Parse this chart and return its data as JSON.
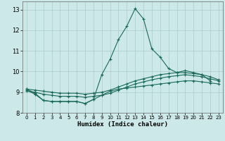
{
  "title": "",
  "xlabel": "Humidex (Indice chaleur)",
  "ylabel": "",
  "xlim": [
    -0.5,
    23.5
  ],
  "ylim": [
    8.0,
    13.4
  ],
  "yticks": [
    8,
    9,
    10,
    11,
    12,
    13
  ],
  "xticks": [
    0,
    1,
    2,
    3,
    4,
    5,
    6,
    7,
    8,
    9,
    10,
    11,
    12,
    13,
    14,
    15,
    16,
    17,
    18,
    19,
    20,
    21,
    22,
    23
  ],
  "bg_color": "#cce8e8",
  "grid_color": "#aacccc",
  "line_color": "#1a6a5a",
  "lines": [
    {
      "x": [
        0,
        1,
        2,
        3,
        4,
        5,
        6,
        7,
        8,
        9,
        10,
        11,
        12,
        13,
        14,
        15,
        16,
        17,
        18,
        19,
        20,
        21,
        22,
        23
      ],
      "y": [
        9.15,
        8.95,
        8.6,
        8.55,
        8.55,
        8.55,
        8.55,
        8.45,
        8.65,
        9.85,
        10.6,
        11.55,
        12.2,
        13.05,
        12.55,
        11.1,
        10.7,
        10.15,
        9.95,
        9.95,
        9.9,
        9.85,
        9.55,
        null
      ]
    },
    {
      "x": [
        0,
        1,
        2,
        3,
        4,
        5,
        6,
        7,
        8,
        9,
        10,
        11,
        12,
        13,
        14,
        15,
        16,
        17,
        18,
        19,
        20,
        21,
        22,
        23
      ],
      "y": [
        9.15,
        9.1,
        9.05,
        9.0,
        8.95,
        8.95,
        8.95,
        8.9,
        8.95,
        9.0,
        9.1,
        9.25,
        9.4,
        9.55,
        9.65,
        9.75,
        9.85,
        9.9,
        9.95,
        10.05,
        9.95,
        9.85,
        9.75,
        9.6
      ]
    },
    {
      "x": [
        0,
        1,
        2,
        3,
        4,
        5,
        6,
        7,
        8,
        9,
        10,
        11,
        12,
        13,
        14,
        15,
        16,
        17,
        18,
        19,
        20,
        21,
        22,
        23
      ],
      "y": [
        9.05,
        9.0,
        8.9,
        8.85,
        8.8,
        8.8,
        8.8,
        8.75,
        8.8,
        8.85,
        8.95,
        9.1,
        9.25,
        9.4,
        9.5,
        9.6,
        9.68,
        9.75,
        9.8,
        9.85,
        9.8,
        9.75,
        9.65,
        9.55
      ]
    },
    {
      "x": [
        0,
        1,
        2,
        3,
        4,
        5,
        6,
        7,
        8,
        9,
        10,
        11,
        12,
        13,
        14,
        15,
        16,
        17,
        18,
        19,
        20,
        21,
        22,
        23
      ],
      "y": [
        9.1,
        8.9,
        8.6,
        8.55,
        8.55,
        8.55,
        8.55,
        8.45,
        8.65,
        8.85,
        9.05,
        9.15,
        9.2,
        9.25,
        9.3,
        9.35,
        9.4,
        9.45,
        9.5,
        9.55,
        9.55,
        9.5,
        9.45,
        9.4
      ]
    }
  ]
}
